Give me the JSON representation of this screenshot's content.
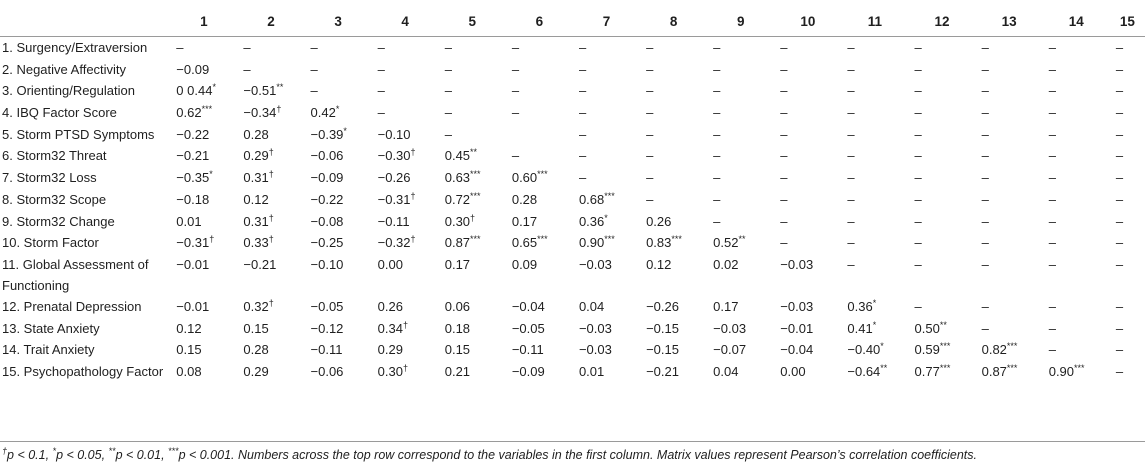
{
  "columns": [
    "1",
    "2",
    "3",
    "4",
    "5",
    "6",
    "7",
    "8",
    "9",
    "10",
    "11",
    "12",
    "13",
    "14",
    "15"
  ],
  "rows": [
    {
      "label": "1. Surgency/Extraversion",
      "values": [
        "–",
        "–",
        "–",
        "–",
        "–",
        "–",
        "–",
        "–",
        "–",
        "–",
        "–",
        "–",
        "–",
        "–",
        "–"
      ]
    },
    {
      "label": "2. Negative Affectivity",
      "values": [
        "−0.09",
        "–",
        "–",
        "–",
        "–",
        "–",
        "–",
        "–",
        "–",
        "–",
        "–",
        "–",
        "–",
        "–",
        "–"
      ]
    },
    {
      "label": "3. Orienting/Regulation",
      "values": [
        "0 0.44*",
        "−0.51**",
        "–",
        "–",
        "–",
        "–",
        "–",
        "–",
        "–",
        "–",
        "–",
        "–",
        "–",
        "–",
        "–"
      ]
    },
    {
      "label": "4. IBQ Factor Score",
      "values": [
        "0.62***",
        "−0.34†",
        "0.42*",
        "–",
        "–",
        "–",
        "–",
        "–",
        "–",
        "–",
        "–",
        "–",
        "–",
        "–",
        "–"
      ]
    },
    {
      "label": "5. Storm PTSD Symptoms",
      "values": [
        "−0.22",
        "0.28",
        "−0.39*",
        "−0.10",
        "–",
        "",
        "–",
        "–",
        "–",
        "–",
        "–",
        "–",
        "–",
        "–",
        "–"
      ]
    },
    {
      "label": "6. Storm32 Threat",
      "values": [
        "−0.21",
        "0.29†",
        "−0.06",
        "−0.30†",
        "0.45**",
        "–",
        "–",
        "–",
        "–",
        "–",
        "–",
        "–",
        "–",
        "–",
        "–"
      ]
    },
    {
      "label": "7. Storm32 Loss",
      "values": [
        "−0.35*",
        "0.31†",
        "−0.09",
        "−0.26",
        "0.63***",
        "0.60***",
        "–",
        "–",
        "–",
        "–",
        "–",
        "–",
        "–",
        "–",
        "–"
      ]
    },
    {
      "label": "8. Storm32 Scope",
      "values": [
        "−0.18",
        "0.12",
        "−0.22",
        "−0.31†",
        "0.72***",
        "0.28",
        "0.68***",
        "–",
        "–",
        "–",
        "–",
        "–",
        "–",
        "–",
        "–"
      ]
    },
    {
      "label": "9. Storm32 Change",
      "values": [
        "0.01",
        "0.31†",
        "−0.08",
        "−0.11",
        "0.30†",
        "0.17",
        "0.36*",
        "0.26",
        "–",
        "–",
        "–",
        "–",
        "–",
        "–",
        "–"
      ]
    },
    {
      "label": "10. Storm Factor",
      "values": [
        "−0.31†",
        "0.33†",
        "−0.25",
        "−0.32†",
        "0.87***",
        "0.65***",
        "0.90***",
        "0.83***",
        "0.52**",
        "–",
        "–",
        "–",
        "–",
        "–",
        "–"
      ]
    },
    {
      "label": "11. Global Assessment of Functioning",
      "values": [
        "−0.01",
        "−0.21",
        "−0.10",
        "0.00",
        "0.17",
        "0.09",
        "−0.03",
        "0.12",
        "0.02",
        "−0.03",
        "–",
        "–",
        "–",
        "–",
        "–"
      ]
    },
    {
      "label": "12. Prenatal Depression",
      "values": [
        "−0.01",
        "0.32†",
        "−0.05",
        "0.26",
        "0.06",
        "−0.04",
        "0.04",
        "−0.26",
        "0.17",
        "−0.03",
        "0.36*",
        "–",
        "–",
        "–",
        "–"
      ]
    },
    {
      "label": "13. State Anxiety",
      "values": [
        "0.12",
        "0.15",
        "−0.12",
        "0.34†",
        "0.18",
        "−0.05",
        "−0.03",
        "−0.15",
        "−0.03",
        "−0.01",
        "0.41*",
        "0.50**",
        "–",
        "–",
        "–"
      ]
    },
    {
      "label": "14. Trait Anxiety",
      "values": [
        "0.15",
        "0.28",
        "−0.11",
        "0.29",
        "0.15",
        "−0.11",
        "−0.03",
        "−0.15",
        "−0.07",
        "−0.04",
        "−0.40*",
        "0.59***",
        "0.82***",
        "–",
        "–"
      ]
    },
    {
      "label": "15. Psychopathology Factor",
      "values": [
        "0.08",
        "0.29",
        "−0.06",
        "0.30†",
        "0.21",
        "−0.09",
        "0.01",
        "−0.21",
        "0.04",
        "0.00",
        "−0.64**",
        "0.77***",
        "0.87***",
        "0.90***",
        "–"
      ]
    }
  ],
  "footnote": "†p < 0.1, *p < 0.05, **p < 0.01, ***p < 0.001. Numbers across the top row correspond to the variables in the first column. Matrix values represent Pearson’s correlation coefficients."
}
